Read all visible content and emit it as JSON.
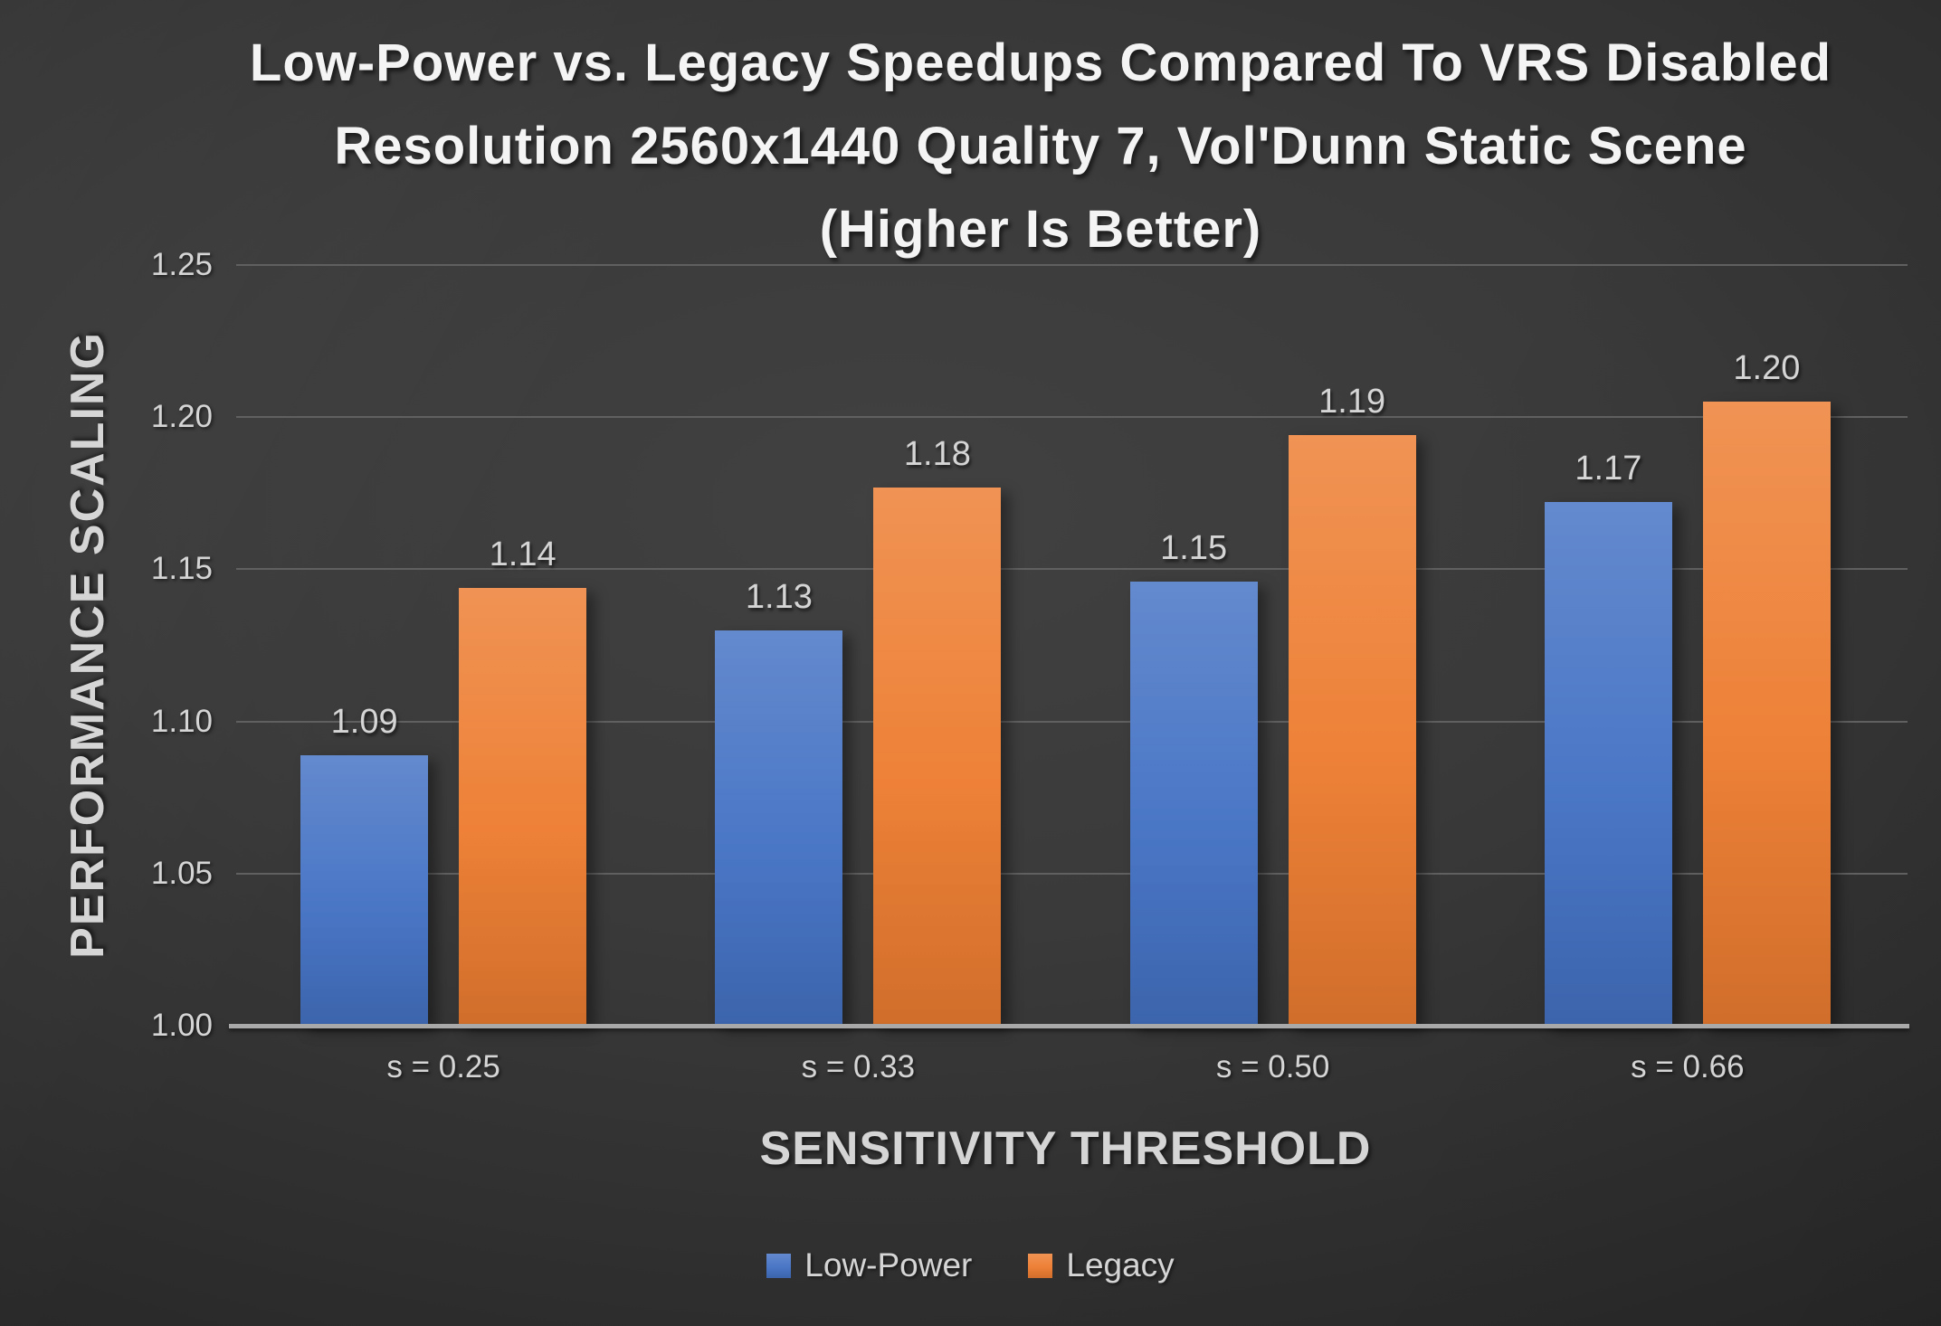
{
  "title": {
    "lines": [
      "Low-Power vs. Legacy Speedups Compared To VRS Disabled",
      "Resolution 2560x1440 Quality 7, Vol'Dunn Static Scene",
      "(Higher Is Better)"
    ]
  },
  "chart_data": {
    "type": "bar",
    "title": "Low-Power vs. Legacy Speedups Compared To VRS Disabled Resolution 2560x1440 Quality 7, Vol'Dunn Static Scene (Higher Is Better)",
    "categories": [
      "s = 0.25",
      "s = 0.33",
      "s = 0.50",
      "s = 0.66"
    ],
    "series": [
      {
        "name": "Low-Power",
        "color": "#4472C4",
        "values": [
          1.089,
          1.13,
          1.146,
          1.172
        ],
        "value_labels": [
          "1.09",
          "1.13",
          "1.15",
          "1.17"
        ]
      },
      {
        "name": "Legacy",
        "color": "#ED7D31",
        "values": [
          1.144,
          1.177,
          1.194,
          1.205
        ],
        "value_labels": [
          "1.14",
          "1.18",
          "1.19",
          "1.20"
        ]
      }
    ],
    "xlabel": "SENSITIVITY THRESHOLD",
    "ylabel": "PERFORMANCE SCALING",
    "ylim": [
      1.0,
      1.25
    ],
    "ytick_step": 0.05,
    "ytick_labels": [
      "1.00",
      "1.05",
      "1.10",
      "1.15",
      "1.20",
      "1.25"
    ],
    "grid": true,
    "legend_position": "bottom",
    "value_labels_shown": true
  },
  "theme": {
    "background_light": "#414141",
    "background_dark": "#1e1e1e",
    "text_bright": "#F4F4F4",
    "text_mid": "#D5D5D5",
    "gridline": "#606060",
    "axis_baseline": "#A9A9A9"
  }
}
